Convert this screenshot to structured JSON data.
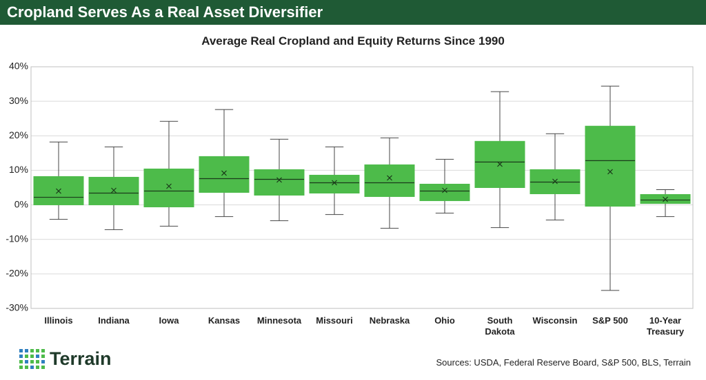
{
  "header": "Cropland Serves As a Real Asset Diversifier",
  "chart_data": {
    "type": "box",
    "title": "Average Real Cropland and Equity Returns Since 1990",
    "categories": [
      "Illinois",
      "Indiana",
      "Iowa",
      "Kansas",
      "Minnesota",
      "Missouri",
      "Nebraska",
      "Ohio",
      "South Dakota",
      "Wisconsin",
      "S&P 500",
      "10-Year Treasury"
    ],
    "min": [
      -4.2,
      -7.2,
      -6.2,
      -3.4,
      -4.6,
      -2.8,
      -6.8,
      -2.4,
      -6.6,
      -4.4,
      -24.8,
      -3.4
    ],
    "q1": [
      0,
      0,
      -0.6,
      3.6,
      2.8,
      3.4,
      2.4,
      1.2,
      5,
      3.2,
      -0.4,
      0.4
    ],
    "median": [
      2.2,
      3.4,
      4,
      7.6,
      7.4,
      6.4,
      6.4,
      4,
      12.4,
      6.6,
      12.8,
      1.4
    ],
    "q3": [
      8.2,
      8,
      10.4,
      14,
      10.2,
      8.6,
      11.6,
      6,
      18.4,
      10.2,
      22.8,
      3
    ],
    "max": [
      18.2,
      16.8,
      24.2,
      27.6,
      19,
      16.8,
      19.4,
      13.2,
      32.8,
      20.6,
      34.4,
      4.4
    ],
    "mean": [
      4,
      4.2,
      5.4,
      9.2,
      7.2,
      6.4,
      7.8,
      4.2,
      11.8,
      6.8,
      9.6,
      1.6
    ],
    "color": "#4dbb4a",
    "ylim": [
      -30,
      40
    ],
    "yticks": [
      {
        "value": -30,
        "label": "-30%"
      },
      {
        "value": -20,
        "label": "-20%"
      },
      {
        "value": -10,
        "label": "-10%"
      },
      {
        "value": 0,
        "label": "0%"
      },
      {
        "value": 10,
        "label": "10%"
      },
      {
        "value": 20,
        "label": "20%"
      },
      {
        "value": 30,
        "label": "30%"
      },
      {
        "value": 40,
        "label": "40%"
      }
    ],
    "grid": true
  },
  "brand": "Terrain",
  "source": "Sources: USDA, Federal Reserve Board, S&P 500, BLS, Terrain"
}
